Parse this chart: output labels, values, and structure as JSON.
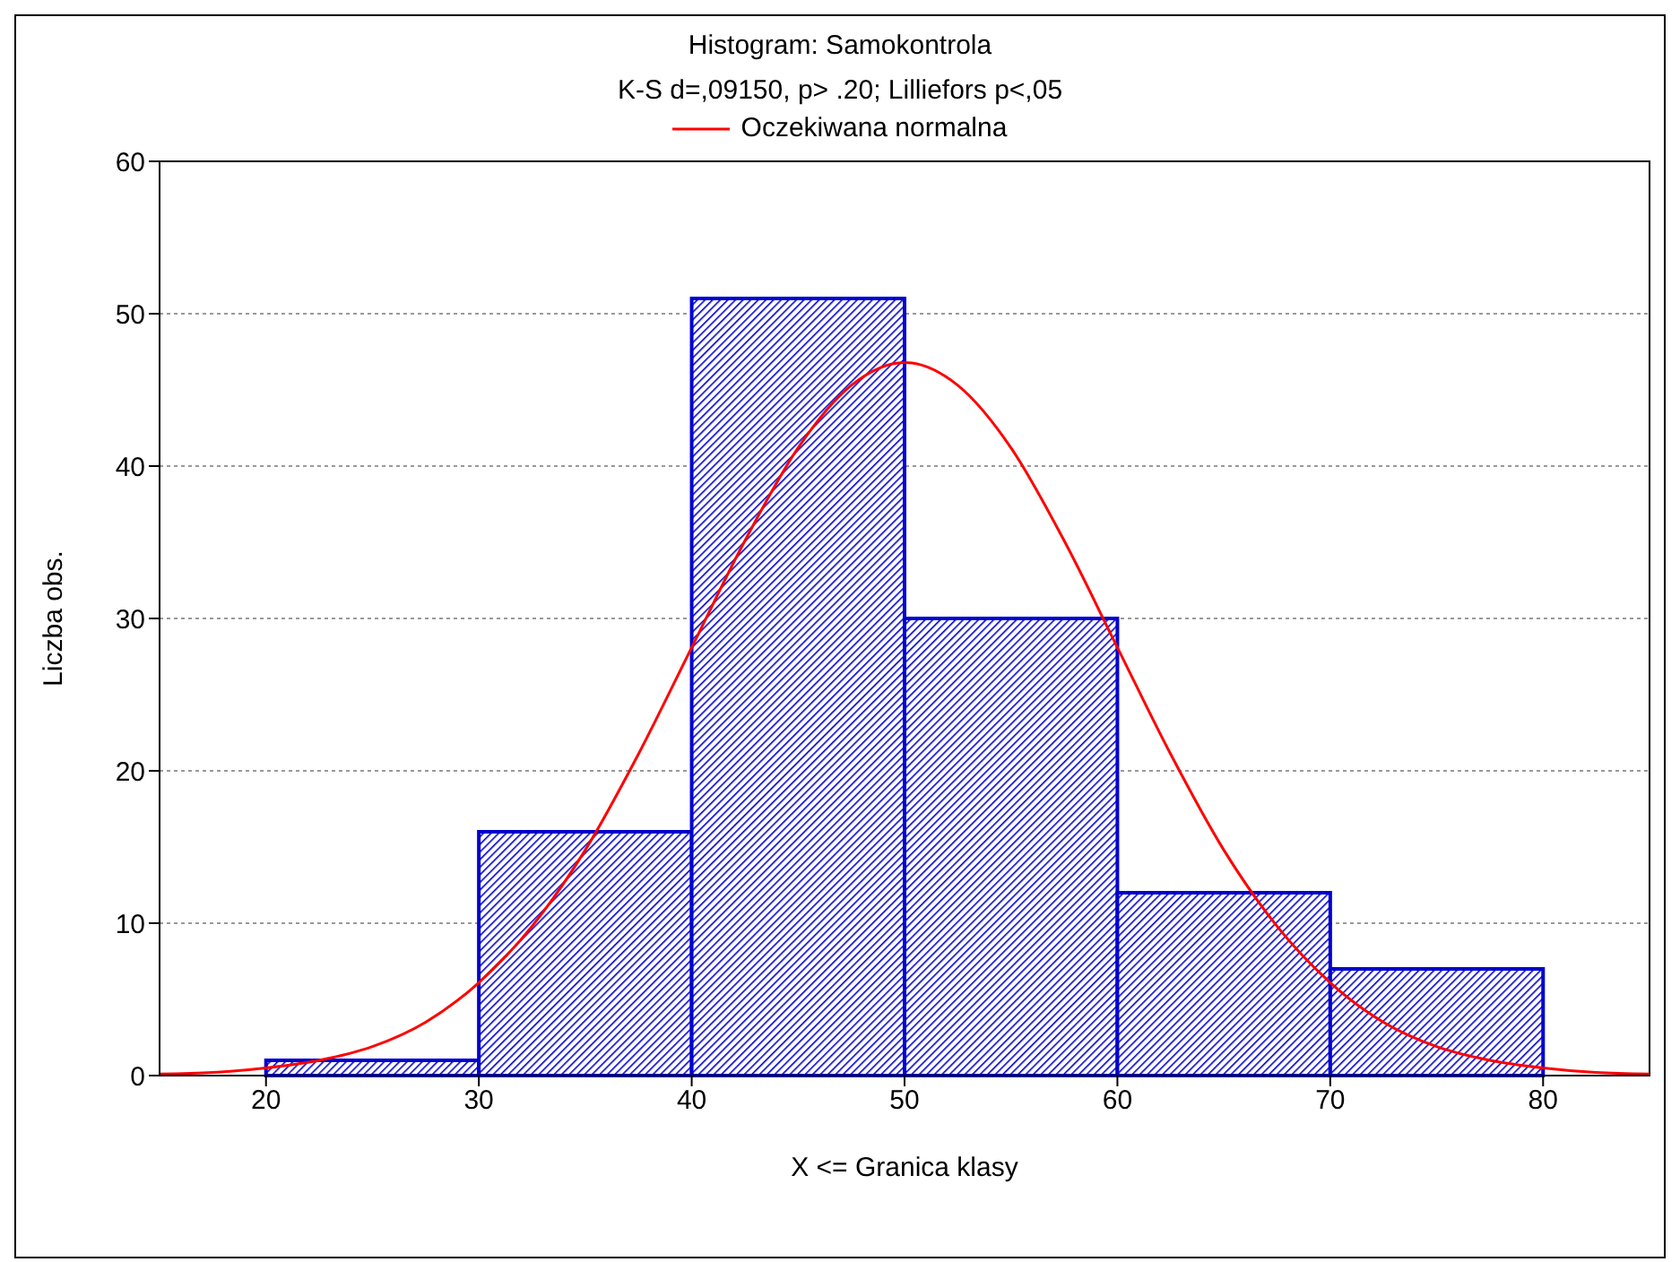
{
  "chart_data": {
    "type": "histogram",
    "title": "Histogram: Samokontrola",
    "subtitle": "K-S d=,09150, p> .20; Lilliefors p<,05",
    "xlabel": "X <= Granica klasy",
    "ylabel": "Liczba obs.",
    "bins": [
      20,
      30,
      40,
      50,
      60,
      70,
      80
    ],
    "values": [
      1,
      16,
      51,
      30,
      12,
      7
    ],
    "color": "#0000cc",
    "series": [
      {
        "name": "Oczekiwana normalna",
        "type": "line",
        "color": "#ff0000",
        "x": [
          15,
          17.5,
          20,
          22.5,
          25,
          27.5,
          30,
          32.5,
          35,
          37.5,
          40,
          42.5,
          45,
          47.5,
          50,
          52.5,
          55,
          57.5,
          60,
          62.5,
          65,
          67.5,
          70,
          72.5,
          75,
          77.5,
          80,
          82.5,
          85
        ],
        "values": [
          0.1,
          0.2,
          0.5,
          1.0,
          1.9,
          3.5,
          6.1,
          9.8,
          14.8,
          21.1,
          28.1,
          35.1,
          41.2,
          45.3,
          46.8,
          45.3,
          41.2,
          35.1,
          28.1,
          21.1,
          14.8,
          9.8,
          6.1,
          3.5,
          1.9,
          1.0,
          0.5,
          0.2,
          0.1
        ]
      }
    ],
    "xlim": [
      15,
      85
    ],
    "xticks": [
      20,
      30,
      40,
      50,
      60,
      70,
      80
    ],
    "ylim": [
      0,
      60
    ],
    "yticks": [
      0,
      10,
      20,
      30,
      40,
      50,
      60
    ],
    "grid": "y",
    "legend": "top"
  }
}
